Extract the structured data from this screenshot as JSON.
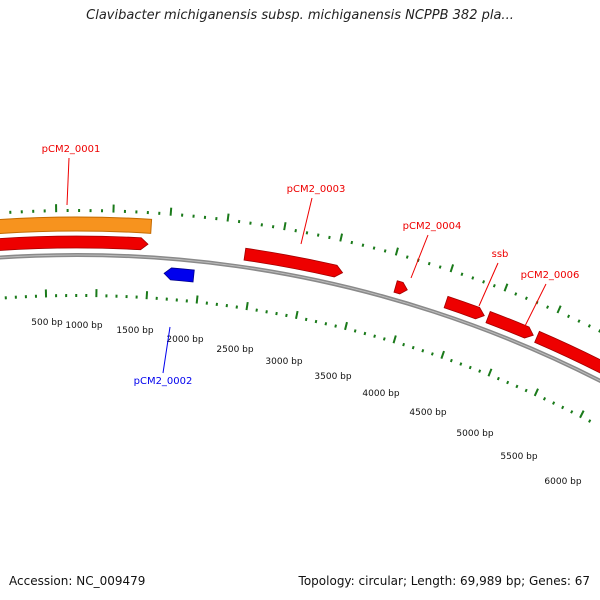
{
  "title": "Clavibacter michiganensis subsp. michiganensis NCPPB 382 pla...",
  "footer": {
    "accession": "Accession: NC_009479",
    "summary": "Topology: circular; Length: 69,989 bp; Genes: 67"
  },
  "colors": {
    "forward_gene": "#ee0000",
    "reverse_gene": "#0000ee",
    "orange_track": "#f7931e",
    "backbone": "#8a8a8a",
    "tick_marks": "#1a7a1a"
  },
  "ruler": {
    "labels": [
      "500 bp",
      "1000 bp",
      "1500 bp",
      "2000 bp",
      "2500 bp",
      "3000 bp",
      "3500 bp",
      "4000 bp",
      "4500 bp",
      "5000 bp",
      "5500 bp",
      "6000 bp"
    ]
  },
  "genes": [
    {
      "name": "pCM2_0001",
      "strand": "forward"
    },
    {
      "name": "pCM2_0002",
      "strand": "reverse"
    },
    {
      "name": "pCM2_0003",
      "strand": "forward"
    },
    {
      "name": "pCM2_0004",
      "strand": "forward"
    },
    {
      "name": "ssb",
      "strand": "forward"
    },
    {
      "name": "pCM2_0006",
      "strand": "forward"
    }
  ]
}
